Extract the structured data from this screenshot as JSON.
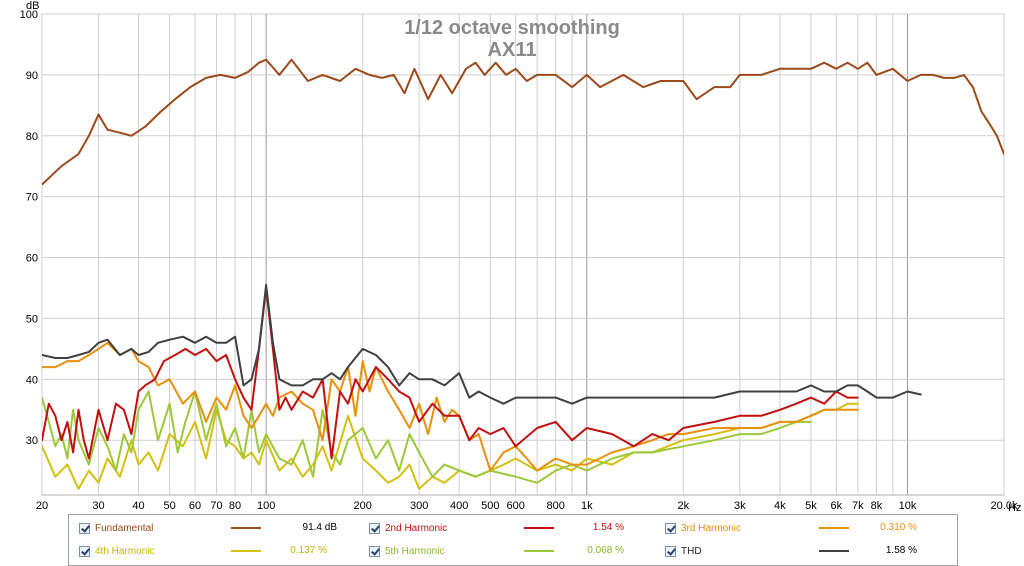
{
  "chart_data": {
    "type": "line",
    "title": "1/12 octave smoothing",
    "subtitle": "AX11",
    "ylabel": "dB",
    "xlabel": "Hz",
    "x_scale": "log",
    "xlim": [
      20,
      20000
    ],
    "ylim": [
      21,
      100
    ],
    "grid": true,
    "x_ticks": [
      {
        "v": 20,
        "label": "20"
      },
      {
        "v": 30,
        "label": "30"
      },
      {
        "v": 40,
        "label": "40"
      },
      {
        "v": 50,
        "label": "50"
      },
      {
        "v": 60,
        "label": "60"
      },
      {
        "v": 70,
        "label": "70"
      },
      {
        "v": 80,
        "label": "80"
      },
      {
        "v": 100,
        "label": "100"
      },
      {
        "v": 200,
        "label": "200"
      },
      {
        "v": 300,
        "label": "300"
      },
      {
        "v": 400,
        "label": "400"
      },
      {
        "v": 500,
        "label": "500"
      },
      {
        "v": 600,
        "label": "600"
      },
      {
        "v": 800,
        "label": "800"
      },
      {
        "v": 1000,
        "label": "1k"
      },
      {
        "v": 2000,
        "label": "2k"
      },
      {
        "v": 3000,
        "label": "3k"
      },
      {
        "v": 4000,
        "label": "4k"
      },
      {
        "v": 5000,
        "label": "5k"
      },
      {
        "v": 6000,
        "label": "6k"
      },
      {
        "v": 7000,
        "label": "7k"
      },
      {
        "v": 8000,
        "label": "8k"
      },
      {
        "v": 10000,
        "label": "10k"
      },
      {
        "v": 20000,
        "label": "20.0k"
      }
    ],
    "y_ticks": [
      30,
      40,
      50,
      60,
      70,
      80,
      90,
      100
    ],
    "series": [
      {
        "name": "Fundamental",
        "color": "#9c4a1a",
        "legend_value": "91.4 dB",
        "x": [
          20,
          23,
          26,
          28,
          30,
          32,
          35,
          38,
          42,
          47,
          52,
          58,
          65,
          72,
          80,
          88,
          95,
          100,
          110,
          120,
          135,
          150,
          170,
          190,
          210,
          230,
          250,
          270,
          290,
          320,
          350,
          380,
          420,
          450,
          480,
          520,
          560,
          600,
          650,
          700,
          800,
          900,
          1000,
          1100,
          1300,
          1500,
          1700,
          2000,
          2200,
          2500,
          2800,
          3000,
          3500,
          4000,
          4500,
          5000,
          5500,
          6000,
          6500,
          7000,
          7500,
          8000,
          9000,
          10000,
          11000,
          12000,
          13000,
          14000,
          15000,
          16000,
          17000,
          18000,
          19000,
          20000
        ],
        "y": [
          72,
          75,
          77,
          80,
          83.5,
          81,
          80.5,
          80,
          81.5,
          84,
          86,
          88,
          89.5,
          90,
          89.5,
          90.5,
          92,
          92.5,
          90,
          92.5,
          89,
          90,
          89,
          91,
          90,
          89.5,
          90,
          87,
          91,
          86,
          90,
          87,
          91,
          92,
          90,
          92,
          90,
          91,
          89,
          90,
          90,
          88,
          90,
          88,
          90,
          88,
          89,
          89,
          86,
          88,
          88,
          90,
          90,
          91,
          91,
          91,
          92,
          91,
          92,
          91,
          92,
          90,
          91,
          89,
          90,
          90,
          89.5,
          89.5,
          90,
          88,
          84,
          82,
          80,
          77
        ]
      },
      {
        "name": "2nd Harmonic",
        "color": "#c01010",
        "legend_value": "1.54 %",
        "x": [
          20,
          21,
          22,
          23,
          24,
          25,
          26,
          27,
          28,
          30,
          32,
          34,
          36,
          38,
          40,
          42,
          45,
          48,
          52,
          56,
          60,
          65,
          70,
          75,
          80,
          85,
          90,
          95,
          100,
          105,
          110,
          115,
          120,
          130,
          140,
          150,
          160,
          170,
          180,
          190,
          200,
          220,
          240,
          260,
          280,
          300,
          330,
          360,
          400,
          430,
          460,
          500,
          550,
          600,
          700,
          800,
          900,
          1000,
          1200,
          1400,
          1600,
          1800,
          2000,
          2500,
          3000,
          3500,
          4000,
          4500,
          5000,
          5500,
          6000,
          6500,
          7000
        ],
        "y": [
          30,
          36,
          34,
          30,
          33,
          28,
          35,
          30,
          27,
          35,
          30,
          36,
          35,
          31,
          38,
          39,
          40,
          43,
          44,
          45,
          44,
          45,
          43,
          44,
          40,
          37,
          35,
          45,
          55,
          45,
          35,
          37,
          35,
          38,
          37,
          40,
          27,
          38,
          36,
          40,
          38,
          42,
          40,
          38,
          37,
          33,
          36,
          34,
          34,
          30,
          32,
          31,
          32,
          29,
          32,
          33,
          30,
          32,
          31,
          29,
          31,
          30,
          32,
          33,
          34,
          34,
          35,
          36,
          37,
          36,
          38,
          37,
          37
        ]
      },
      {
        "name": "3rd Harmonic",
        "color": "#e8900a",
        "legend_value": "0.310 %",
        "x": [
          20,
          22,
          24,
          26,
          28,
          30,
          32,
          35,
          38,
          40,
          43,
          46,
          50,
          55,
          60,
          65,
          70,
          75,
          80,
          85,
          90,
          95,
          100,
          105,
          110,
          120,
          130,
          140,
          150,
          160,
          170,
          180,
          190,
          200,
          210,
          220,
          240,
          260,
          280,
          300,
          320,
          340,
          360,
          380,
          400,
          430,
          460,
          500,
          550,
          600,
          650,
          700,
          800,
          900,
          1000,
          1200,
          1400,
          1600,
          1800,
          2000,
          2500,
          3000,
          3500,
          4000,
          4500,
          5000,
          5500,
          6000,
          6500,
          7000
        ],
        "y": [
          42,
          42,
          43,
          43,
          44,
          45,
          46,
          44,
          45,
          43,
          42,
          39,
          40,
          36,
          38,
          33,
          37,
          35,
          39,
          34,
          32,
          34,
          36,
          34,
          37,
          38,
          36,
          35,
          30,
          40,
          38,
          42,
          34,
          43,
          38,
          42,
          38,
          35,
          32,
          36,
          31,
          37,
          33,
          35,
          34,
          30,
          31,
          25,
          28,
          29,
          27,
          25,
          27,
          26,
          26,
          28,
          29,
          30,
          31,
          31,
          32,
          32,
          32,
          33,
          33,
          34,
          35,
          35,
          35,
          35
        ]
      },
      {
        "name": "4th Harmonic",
        "color": "#d4c010",
        "legend_value": "0.137 %",
        "x": [
          20,
          22,
          24,
          26,
          28,
          30,
          32,
          35,
          38,
          40,
          43,
          46,
          50,
          55,
          60,
          65,
          70,
          75,
          80,
          85,
          90,
          95,
          100,
          110,
          120,
          130,
          140,
          150,
          160,
          180,
          200,
          220,
          240,
          260,
          280,
          300,
          330,
          360,
          400,
          450,
          500,
          550,
          600,
          700,
          800,
          900,
          1000,
          1200,
          1400,
          1600,
          2000,
          2500,
          3000,
          3500,
          4000,
          4500,
          5000,
          5500,
          6000,
          6500,
          7000
        ],
        "y": [
          29,
          24,
          26,
          22,
          25,
          23,
          27,
          24,
          30,
          26,
          28,
          25,
          31,
          29,
          33,
          27,
          35,
          30,
          29,
          27,
          28,
          26,
          30,
          25,
          27,
          24,
          26,
          29,
          25,
          34,
          27,
          25,
          23,
          24,
          26,
          22,
          24,
          23,
          25,
          24,
          25,
          26,
          27,
          25,
          26,
          25,
          27,
          26,
          28,
          28,
          30,
          31,
          32,
          32,
          33,
          33,
          34,
          35,
          35,
          36,
          36
        ]
      },
      {
        "name": "5th Harmonic",
        "color": "#9cc83a",
        "legend_value": "0.068 %",
        "x": [
          20,
          21,
          22,
          23,
          24,
          25,
          26,
          28,
          30,
          32,
          34,
          36,
          38,
          40,
          43,
          46,
          50,
          53,
          56,
          60,
          65,
          70,
          75,
          80,
          85,
          90,
          95,
          100,
          110,
          120,
          130,
          140,
          150,
          160,
          170,
          180,
          200,
          220,
          240,
          260,
          280,
          300,
          330,
          360,
          400,
          450,
          500,
          600,
          700,
          800,
          900,
          1000,
          1200,
          1400,
          1600,
          2000,
          2500,
          3000,
          3500,
          4000,
          4500,
          5000
        ],
        "y": [
          37,
          33,
          29,
          31,
          27,
          35,
          30,
          26,
          32,
          29,
          25,
          31,
          28,
          35,
          38,
          30,
          36,
          28,
          33,
          38,
          30,
          36,
          29,
          32,
          27,
          35,
          28,
          31,
          27,
          26,
          30,
          24,
          35,
          28,
          26,
          30,
          32,
          27,
          30,
          25,
          31,
          28,
          24,
          26,
          25,
          24,
          25,
          24,
          23,
          25,
          26,
          25,
          27,
          28,
          28,
          29,
          30,
          31,
          31,
          32,
          33,
          33
        ]
      },
      {
        "name": "THD",
        "color": "#404040",
        "legend_value": "1.58 %",
        "x": [
          20,
          22,
          24,
          26,
          28,
          30,
          32,
          35,
          38,
          40,
          43,
          46,
          50,
          55,
          60,
          65,
          70,
          75,
          80,
          85,
          90,
          95,
          100,
          105,
          110,
          120,
          130,
          140,
          150,
          160,
          170,
          180,
          200,
          220,
          240,
          260,
          280,
          300,
          330,
          360,
          400,
          430,
          460,
          500,
          550,
          600,
          700,
          800,
          900,
          1000,
          1200,
          1400,
          1600,
          2000,
          2500,
          3000,
          3500,
          4000,
          4500,
          5000,
          5500,
          6000,
          6500,
          7000,
          7500,
          8000,
          9000,
          10000,
          11000
        ],
        "y": [
          44,
          43.5,
          43.5,
          44,
          44.5,
          46,
          46.5,
          44,
          45,
          44,
          44.5,
          46,
          46.5,
          47,
          46,
          47,
          46,
          46,
          47,
          39,
          40,
          45,
          55.5,
          46,
          40,
          39,
          39,
          40,
          40,
          41,
          40,
          42,
          45,
          44,
          42,
          39,
          41,
          40,
          40,
          39,
          41,
          37,
          38,
          37,
          36,
          37,
          37,
          37,
          36,
          37,
          37,
          37,
          37,
          37,
          37,
          38,
          38,
          38,
          38,
          39,
          38,
          38,
          39,
          39,
          38,
          37,
          37,
          38,
          37.5
        ]
      }
    ]
  }
}
